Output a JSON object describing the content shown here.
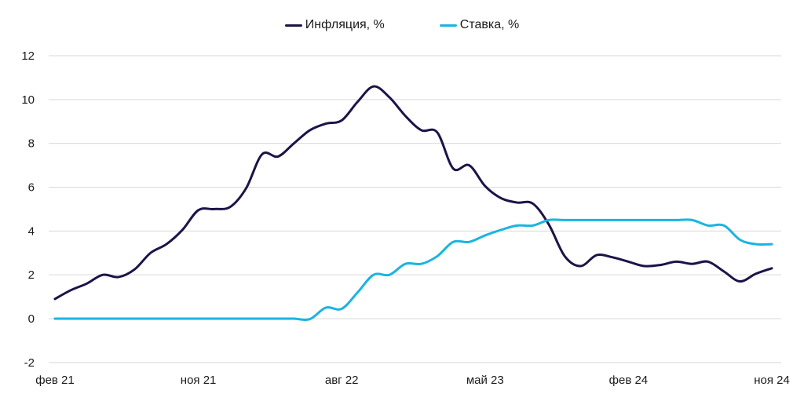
{
  "chart_data": {
    "type": "line",
    "title": "",
    "xlabel": "",
    "ylabel": "",
    "ylim": [
      -2,
      12
    ],
    "yticks": [
      "12",
      "10",
      "8",
      "6",
      "4",
      "2",
      "0",
      "-2"
    ],
    "ytick_values": [
      12,
      10,
      8,
      6,
      4,
      2,
      0,
      -2
    ],
    "xtick_labels": [
      "фев 21",
      "ноя 21",
      "авг 22",
      "май 23",
      "фев 24",
      "ноя 24"
    ],
    "xtick_month_index": [
      0,
      9,
      18,
      27,
      36,
      45
    ],
    "x": [
      "2021-02",
      "2021-03",
      "2021-04",
      "2021-05",
      "2021-06",
      "2021-07",
      "2021-08",
      "2021-09",
      "2021-10",
      "2021-11",
      "2021-12",
      "2022-01",
      "2022-02",
      "2022-03",
      "2022-04",
      "2022-05",
      "2022-06",
      "2022-07",
      "2022-08",
      "2022-09",
      "2022-10",
      "2022-11",
      "2022-12",
      "2023-01",
      "2023-02",
      "2023-03",
      "2023-04",
      "2023-05",
      "2023-06",
      "2023-07",
      "2023-08",
      "2023-09",
      "2023-10",
      "2023-11",
      "2023-12",
      "2024-01",
      "2024-02",
      "2024-03",
      "2024-04",
      "2024-05",
      "2024-06",
      "2024-07",
      "2024-08",
      "2024-09",
      "2024-10",
      "2024-11"
    ],
    "grid": true,
    "legend_position": "top",
    "series": [
      {
        "name": "Инфляция, %",
        "color": "#1b1449",
        "values": [
          0.9,
          1.3,
          1.6,
          2.0,
          1.9,
          2.25,
          3.0,
          3.4,
          4.05,
          4.95,
          5.0,
          5.1,
          5.95,
          7.5,
          7.4,
          8.0,
          8.6,
          8.9,
          9.05,
          9.9,
          10.6,
          10.1,
          9.25,
          8.6,
          8.5,
          6.85,
          7.0,
          6.05,
          5.5,
          5.3,
          5.25,
          4.3,
          2.85,
          2.4,
          2.9,
          2.8,
          2.6,
          2.4,
          2.45,
          2.6,
          2.5,
          2.6,
          2.15,
          1.7,
          2.05,
          2.3
        ]
      },
      {
        "name": "Ставка, %",
        "color": "#1ab4e1",
        "values": [
          0,
          0,
          0,
          0,
          0,
          0,
          0,
          0,
          0,
          0,
          0,
          0,
          0,
          0,
          0,
          0,
          -0.02,
          0.5,
          0.45,
          1.2,
          2.0,
          2.0,
          2.5,
          2.5,
          2.85,
          3.5,
          3.5,
          3.8,
          4.05,
          4.25,
          4.25,
          4.5,
          4.5,
          4.5,
          4.5,
          4.5,
          4.5,
          4.5,
          4.5,
          4.5,
          4.5,
          4.25,
          4.25,
          3.6,
          3.4,
          3.4
        ]
      }
    ]
  }
}
